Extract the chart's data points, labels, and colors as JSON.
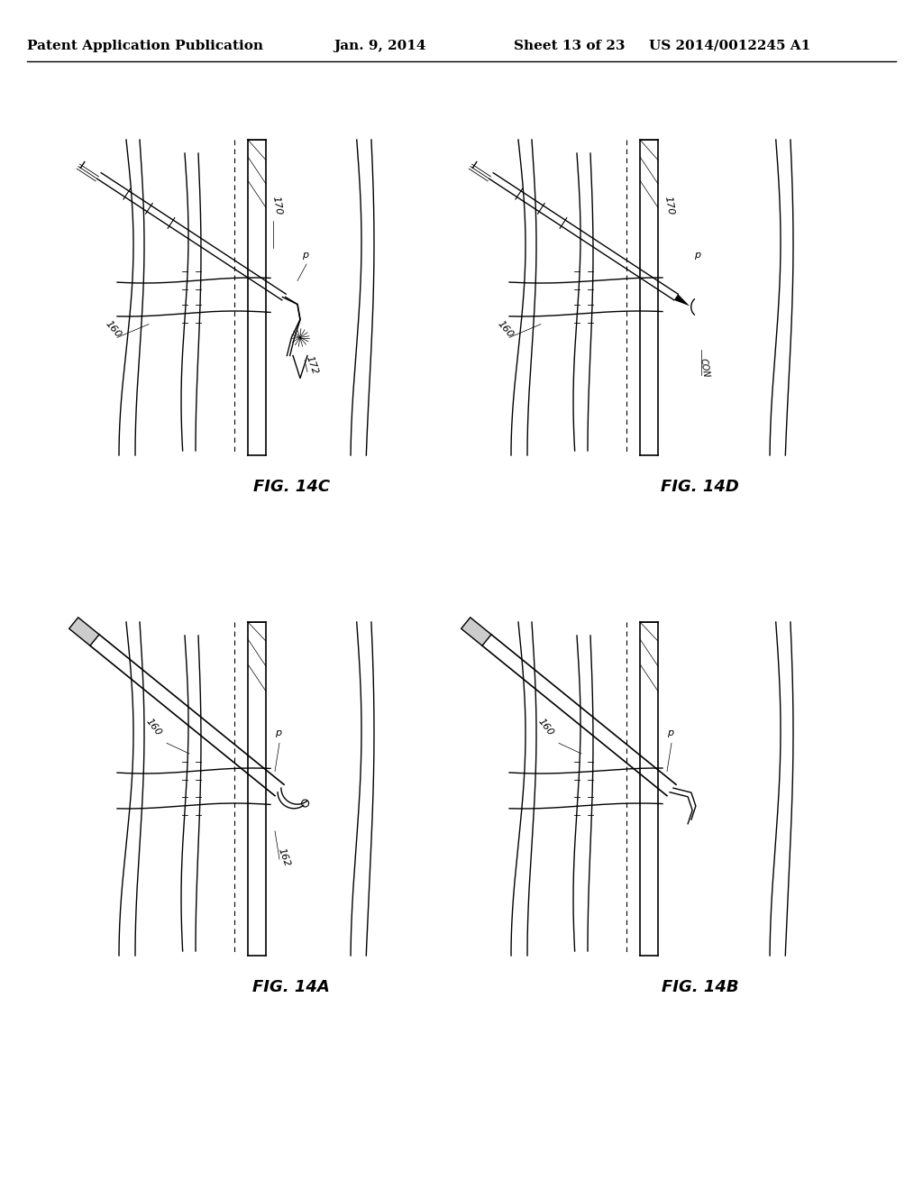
{
  "background_color": "#ffffff",
  "header_left": "Patent Application Publication",
  "header_mid": "Jan. 9, 2014",
  "header_right_left": "Sheet 13 of 23",
  "header_right_right": "US 2014/0012245 A1",
  "header_fontsize": 11,
  "fig_label_fontsize": 13
}
